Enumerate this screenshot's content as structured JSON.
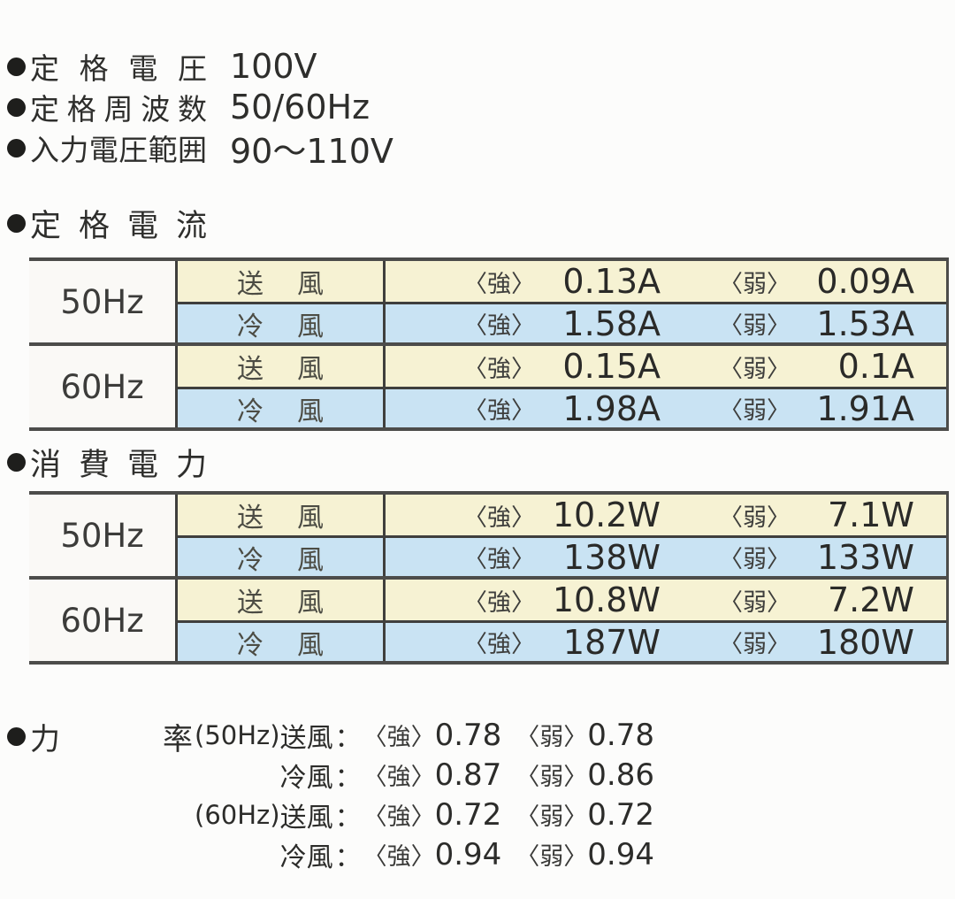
{
  "specs": [
    {
      "label": "定格電圧",
      "value": "100V"
    },
    {
      "label": "定格周波数",
      "value": "50/60Hz"
    },
    {
      "label": "入力電圧範囲",
      "value": "90～110V"
    }
  ],
  "labels": {
    "strong": "〈強〉",
    "weak": "〈弱〉",
    "colon": "："
  },
  "tables": [
    {
      "title": "定格電流",
      "groups": [
        {
          "freq": "50Hz",
          "rows": [
            {
              "mode": "送風",
              "strong": "0.13A",
              "weak": "0.09A"
            },
            {
              "mode": "冷風",
              "strong": "1.58A",
              "weak": "1.53A"
            }
          ]
        },
        {
          "freq": "60Hz",
          "rows": [
            {
              "mode": "送風",
              "strong": "0.15A",
              "weak": "0.1A"
            },
            {
              "mode": "冷風",
              "strong": "1.98A",
              "weak": "1.91A"
            }
          ]
        }
      ]
    },
    {
      "title": "消費電力",
      "groups": [
        {
          "freq": "50Hz",
          "rows": [
            {
              "mode": "送風",
              "strong": "10.2W",
              "weak": "7.1W"
            },
            {
              "mode": "冷風",
              "strong": "138W",
              "weak": "133W"
            }
          ]
        },
        {
          "freq": "60Hz",
          "rows": [
            {
              "mode": "送風",
              "strong": "10.8W",
              "weak": "7.2W"
            },
            {
              "mode": "冷風",
              "strong": "187W",
              "weak": "180W"
            }
          ]
        }
      ]
    }
  ],
  "power_factor": {
    "title": "力率",
    "lines": [
      {
        "prefix": "(50Hz)",
        "mode": "送風",
        "strong": "0.78",
        "weak": "0.78"
      },
      {
        "prefix": "",
        "mode": "冷風",
        "strong": "0.87",
        "weak": "0.86"
      },
      {
        "prefix": "(60Hz)",
        "mode": "送風",
        "strong": "0.72",
        "weak": "0.72"
      },
      {
        "prefix": "",
        "mode": "冷風",
        "strong": "0.94",
        "weak": "0.94"
      }
    ]
  },
  "colors": {
    "fan_row_bg": "#f6f2d3",
    "cool_row_bg": "#c9e3f3",
    "table_border": "#3f3f3d"
  }
}
